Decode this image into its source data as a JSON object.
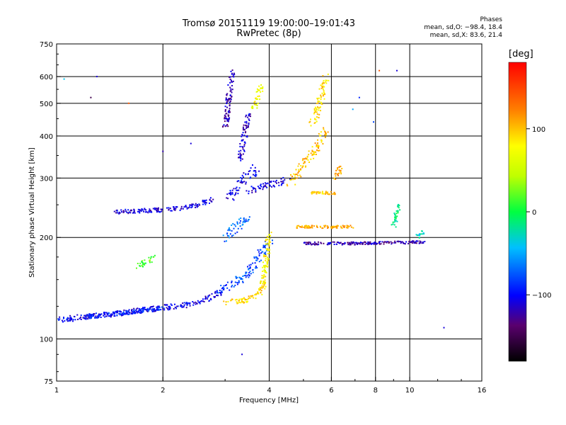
{
  "header": {
    "title_line1": "Tromsø 20151119 19:00:00–19:01:43",
    "title_line2": "RwPretec (8p)",
    "stats_heading": "Phases",
    "stats_o": "mean, sd,O: −98.4, 18.4",
    "stats_x": "mean, sd,X: 83.6, 21.4"
  },
  "colorbar": {
    "label": "[deg]",
    "ticks": [
      {
        "value": 100,
        "label": "100"
      },
      {
        "value": 0,
        "label": "0"
      },
      {
        "value": -100,
        "label": "−100"
      }
    ],
    "range": [
      -180,
      180
    ]
  },
  "chart_data": {
    "type": "scatter",
    "xlabel": "Frequency [MHz]",
    "ylabel": "Stationary phase Virtual Height [km]",
    "xscale": "log",
    "yscale": "log",
    "xlim": [
      1,
      16
    ],
    "ylim": [
      75,
      750
    ],
    "xticks": [
      {
        "value": 1,
        "label": "1"
      },
      {
        "value": 2,
        "label": "2"
      },
      {
        "value": 4,
        "label": "4"
      },
      {
        "value": 6,
        "label": "6"
      },
      {
        "value": 8,
        "label": "8"
      },
      {
        "value": 10,
        "label": "10"
      },
      {
        "value": 16,
        "label": "16"
      }
    ],
    "yticks": [
      {
        "value": 75,
        "label": "75"
      },
      {
        "value": 100,
        "label": "100"
      },
      {
        "value": 200,
        "label": "200"
      },
      {
        "value": 300,
        "label": "300"
      },
      {
        "value": 400,
        "label": "400"
      },
      {
        "value": 500,
        "label": "500"
      },
      {
        "value": 600,
        "label": "600"
      },
      {
        "value": 750,
        "label": "750"
      }
    ],
    "gridlines_x": [
      2,
      4,
      6,
      8,
      10
    ],
    "gridlines_y": [
      100,
      200,
      300,
      400,
      500,
      600
    ],
    "grid": true,
    "color_encoding": "phase in degrees",
    "segments": [
      {
        "x": [
          1.0,
          1.4,
          1.8,
          2.3,
          2.7,
          3.0
        ],
        "y": [
          114,
          118,
          122,
          126,
          132,
          140
        ],
        "phase": -105,
        "spread": 4
      },
      {
        "x": [
          1.2,
          1.6,
          2.0
        ],
        "y": [
          116,
          120,
          124
        ],
        "phase": -90,
        "spread": 3
      },
      {
        "x": [
          1.45,
          1.75,
          2.1,
          2.45,
          2.8
        ],
        "y": [
          238,
          240,
          242,
          248,
          260
        ],
        "phase": -110,
        "spread": 3
      },
      {
        "x": [
          2.9,
          3.3,
          3.6,
          3.85,
          4.0
        ],
        "y": [
          140,
          150,
          165,
          185,
          195
        ],
        "phase": -80,
        "spread": 6
      },
      {
        "x": [
          3.0,
          3.2,
          3.5
        ],
        "y": [
          200,
          215,
          230
        ],
        "phase": -70,
        "spread": 6
      },
      {
        "x": [
          3.0,
          3.15
        ],
        "y": [
          420,
          630
        ],
        "phase": -120,
        "spread": 4
      },
      {
        "x": [
          3.3,
          3.5
        ],
        "y": [
          340,
          470
        ],
        "phase": -115,
        "spread": 4
      },
      {
        "x": [
          3.5,
          3.9,
          4.2,
          4.5
        ],
        "y": [
          275,
          285,
          290,
          295
        ],
        "phase": -110,
        "spread": 5
      },
      {
        "x": [
          3.1,
          3.4,
          3.7
        ],
        "y": [
          260,
          300,
          320
        ],
        "phase": -105,
        "spread": 6
      },
      {
        "x": [
          1.7,
          1.9
        ],
        "y": [
          165,
          175
        ],
        "phase": 20,
        "spread": 4
      },
      {
        "x": [
          3.0,
          3.4,
          3.7,
          3.9
        ],
        "y": [
          128,
          130,
          135,
          145
        ],
        "phase": 95,
        "spread": 4
      },
      {
        "x": [
          3.8,
          3.9,
          4.0
        ],
        "y": [
          140,
          165,
          205
        ],
        "phase": 80,
        "spread": 4
      },
      {
        "x": [
          4.6,
          5.0,
          5.5,
          5.8
        ],
        "y": [
          290,
          330,
          370,
          420
        ],
        "phase": 100,
        "spread": 6
      },
      {
        "x": [
          5.3,
          5.6,
          5.8
        ],
        "y": [
          430,
          520,
          600
        ],
        "phase": 90,
        "spread": 5
      },
      {
        "x": [
          6.2,
          6.4
        ],
        "y": [
          300,
          330
        ],
        "phase": 110,
        "spread": 4
      },
      {
        "x": [
          3.6,
          3.8
        ],
        "y": [
          480,
          560
        ],
        "phase": 70,
        "spread": 4
      },
      {
        "x": [
          5.0,
          7.0,
          9.0,
          11.0
        ],
        "y": [
          192,
          192,
          193,
          194
        ],
        "phase": -120,
        "spread": 2
      },
      {
        "x": [
          4.8,
          6.0,
          7.0
        ],
        "y": [
          215,
          215,
          215
        ],
        "phase": 110,
        "spread": 2
      },
      {
        "x": [
          5.2,
          5.6,
          6.2
        ],
        "y": [
          270,
          272,
          270
        ],
        "phase": 100,
        "spread": 2
      },
      {
        "x": [
          9.0,
          9.3
        ],
        "y": [
          215,
          250
        ],
        "phase": -10,
        "spread": 3
      },
      {
        "x": [
          10.5,
          11.0
        ],
        "y": [
          200,
          210
        ],
        "phase": -30,
        "spread": 3
      }
    ],
    "points": [
      {
        "x": 1.05,
        "y": 590,
        "phase": -40
      },
      {
        "x": 1.25,
        "y": 520,
        "phase": -150
      },
      {
        "x": 1.3,
        "y": 600,
        "phase": -110
      },
      {
        "x": 1.6,
        "y": 500,
        "phase": 140
      },
      {
        "x": 2.0,
        "y": 360,
        "phase": -120
      },
      {
        "x": 2.4,
        "y": 380,
        "phase": -110
      },
      {
        "x": 3.35,
        "y": 90,
        "phase": -110
      },
      {
        "x": 12.5,
        "y": 108,
        "phase": -110
      },
      {
        "x": 8.2,
        "y": 625,
        "phase": 140
      },
      {
        "x": 7.2,
        "y": 520,
        "phase": -90
      },
      {
        "x": 9.2,
        "y": 625,
        "phase": -110
      },
      {
        "x": 7.9,
        "y": 440,
        "phase": -80
      },
      {
        "x": 6.9,
        "y": 480,
        "phase": -50
      }
    ]
  }
}
